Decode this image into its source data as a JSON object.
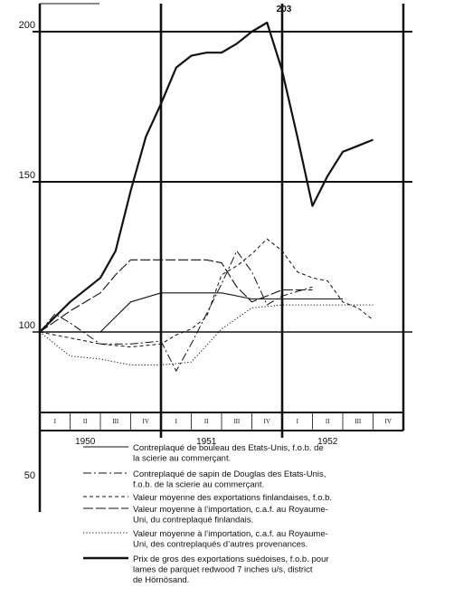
{
  "chart_data": {
    "type": "line",
    "title": "",
    "xlabel": "",
    "ylabel": "",
    "ylim": [
      45,
      210
    ],
    "y_ticks": [
      {
        "value": 200,
        "label": "200"
      },
      {
        "value": 150,
        "label": "150"
      },
      {
        "value": 100,
        "label": "100"
      },
      {
        "value": 50,
        "label": "50"
      }
    ],
    "quarter_labels": [
      "I",
      "II",
      "III",
      "IV",
      "I",
      "II",
      "III",
      "IV",
      "I",
      "II",
      "III",
      "IV"
    ],
    "year_labels": [
      {
        "label": "1950",
        "q": 1.5
      },
      {
        "label": "1951",
        "q": 5.5
      },
      {
        "label": "1952",
        "q": 9.5
      }
    ],
    "x": [
      0,
      0.5,
      1,
      1.5,
      2,
      2.5,
      3,
      3.5,
      4,
      4.5,
      5,
      5.5,
      6,
      6.5,
      7,
      7.5,
      8,
      8.5,
      9,
      9.5,
      10,
      10.5,
      11,
      11.5,
      12
    ],
    "annotation": {
      "label": "203",
      "q": 8,
      "value": 203
    },
    "series": [
      {
        "name": "Contreplaqué de bouleau des Etats-Unis, f.o.b. de la scierie au commerçant.",
        "style": "solid",
        "values": [
          100,
          null,
          100,
          null,
          100,
          null,
          110,
          null,
          113,
          null,
          113,
          null,
          113,
          null,
          111,
          null,
          111,
          null,
          111,
          null,
          111,
          null,
          null,
          null,
          null
        ]
      },
      {
        "name": "Contreplaqué de sapin de Douglas des Etats-Unis, f.o.b. de la scierie au commerçant.",
        "style": "dashdot",
        "values": [
          100,
          106,
          103,
          null,
          96,
          null,
          96,
          null,
          97,
          87,
          96,
          106,
          116,
          127,
          120,
          109,
          112,
          null,
          115,
          null,
          null,
          null,
          null,
          null,
          null
        ]
      },
      {
        "name": "Valeur moyenne des exportations finlandaises, f.o.b.",
        "style": "dashed",
        "values": [
          100,
          null,
          98,
          null,
          96,
          null,
          95,
          null,
          96,
          99,
          101,
          105,
          119,
          122,
          126,
          131,
          127,
          120,
          118,
          117,
          110,
          108,
          104,
          null,
          null
        ]
      },
      {
        "name": "Valeur moyenne à l'importation, c.a.f. au Royaume-Uni, du contreplaqué finlandais.",
        "style": "longdash",
        "values": [
          100,
          null,
          107,
          null,
          113,
          119,
          124,
          null,
          124,
          null,
          124,
          124,
          123,
          115,
          110,
          null,
          114,
          null,
          114,
          null,
          null,
          null,
          null,
          null,
          null
        ]
      },
      {
        "name": "Valeur moyenne à l'importation, c.a.f. au Royaume-Uni, des contreplaqués d'autres provenances.",
        "style": "dotted",
        "values": [
          100,
          null,
          92,
          null,
          91,
          null,
          89,
          null,
          89,
          null,
          90,
          null,
          101,
          null,
          108,
          null,
          109,
          null,
          109,
          null,
          109,
          null,
          109,
          null,
          null
        ]
      },
      {
        "name": "Prix de gros des exportations suédoises, f.o.b. pour lames de parquet redwood 7 inches u/s, district de Hörnösand.",
        "style": "thick",
        "values": [
          100,
          null,
          110,
          null,
          118,
          127,
          147,
          165,
          176,
          188,
          192,
          193,
          193,
          196,
          200,
          203,
          187,
          165,
          142,
          152,
          160,
          162,
          164,
          null,
          null
        ]
      }
    ]
  }
}
